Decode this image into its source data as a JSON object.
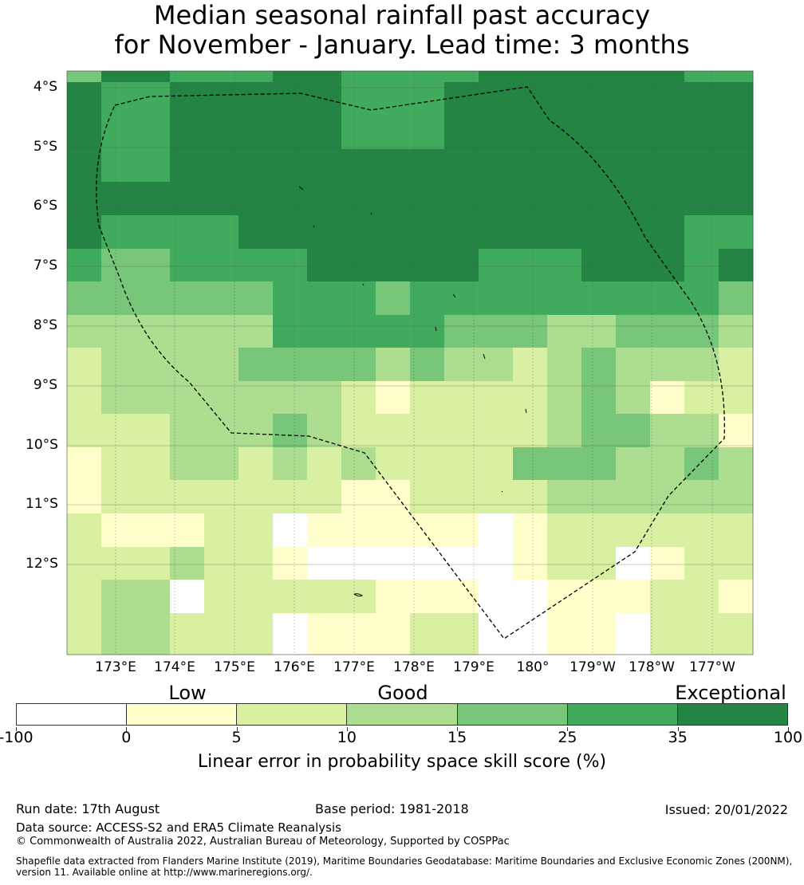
{
  "title": {
    "line1": "Median seasonal rainfall past accuracy",
    "line2": "for November - January. Lead time: 3 months"
  },
  "map": {
    "lat_labels": [
      "4°S",
      "5°S",
      "6°S",
      "7°S",
      "8°S",
      "9°S",
      "10°S",
      "11°S",
      "12°S"
    ],
    "lon_labels": [
      "173°E",
      "174°E",
      "175°E",
      "176°E",
      "177°E",
      "178°E",
      "179°E",
      "180°",
      "179°W",
      "178°W",
      "177°W"
    ],
    "grid": [
      [
        4,
        6,
        6,
        5,
        5,
        5,
        6,
        6,
        5,
        5,
        5,
        5,
        6,
        6,
        6,
        6,
        6,
        6,
        5,
        5
      ],
      [
        6,
        5,
        5,
        6,
        6,
        6,
        6,
        6,
        5,
        5,
        5,
        6,
        6,
        6,
        6,
        6,
        6,
        6,
        6,
        6
      ],
      [
        6,
        5,
        5,
        6,
        6,
        6,
        6,
        6,
        5,
        5,
        5,
        6,
        6,
        6,
        6,
        6,
        6,
        6,
        6,
        6
      ],
      [
        6,
        5,
        5,
        6,
        6,
        6,
        6,
        6,
        6,
        6,
        6,
        6,
        6,
        6,
        6,
        6,
        6,
        6,
        6,
        6
      ],
      [
        6,
        6,
        6,
        6,
        6,
        6,
        6,
        6,
        6,
        6,
        6,
        6,
        6,
        6,
        6,
        6,
        6,
        6,
        6,
        6
      ],
      [
        6,
        5,
        5,
        5,
        5,
        6,
        6,
        6,
        6,
        6,
        6,
        6,
        6,
        6,
        6,
        6,
        6,
        6,
        5,
        5
      ],
      [
        5,
        4,
        4,
        5,
        5,
        5,
        5,
        6,
        6,
        6,
        6,
        6,
        5,
        5,
        5,
        6,
        6,
        6,
        5,
        6
      ],
      [
        4,
        4,
        4,
        4,
        4,
        4,
        5,
        5,
        5,
        4,
        5,
        5,
        5,
        5,
        5,
        5,
        5,
        5,
        5,
        4
      ],
      [
        3,
        3,
        3,
        3,
        3,
        3,
        5,
        5,
        5,
        5,
        5,
        4,
        4,
        4,
        3,
        3,
        4,
        4,
        4,
        3
      ],
      [
        2,
        3,
        3,
        3,
        3,
        4,
        4,
        4,
        4,
        3,
        4,
        3,
        3,
        2,
        3,
        4,
        3,
        3,
        3,
        2
      ],
      [
        2,
        3,
        3,
        3,
        3,
        3,
        3,
        3,
        2,
        1,
        2,
        2,
        2,
        2,
        3,
        4,
        3,
        1,
        2,
        2
      ],
      [
        2,
        2,
        2,
        3,
        3,
        3,
        4,
        3,
        2,
        2,
        2,
        2,
        2,
        2,
        3,
        4,
        4,
        3,
        3,
        1
      ],
      [
        1,
        2,
        2,
        3,
        3,
        2,
        3,
        2,
        3,
        2,
        2,
        2,
        2,
        4,
        4,
        4,
        3,
        3,
        4,
        3
      ],
      [
        1,
        2,
        2,
        2,
        2,
        2,
        2,
        2,
        1,
        1,
        2,
        2,
        2,
        2,
        3,
        3,
        3,
        3,
        3,
        3
      ],
      [
        2,
        1,
        1,
        1,
        2,
        2,
        0,
        1,
        1,
        1,
        1,
        1,
        0,
        1,
        2,
        2,
        2,
        2,
        2,
        2
      ],
      [
        2,
        2,
        2,
        3,
        2,
        2,
        1,
        0,
        0,
        0,
        0,
        0,
        0,
        1,
        2,
        2,
        0,
        1,
        2,
        2
      ],
      [
        2,
        3,
        3,
        0,
        2,
        2,
        2,
        2,
        2,
        1,
        1,
        1,
        0,
        0,
        1,
        1,
        1,
        2,
        2,
        1
      ],
      [
        2,
        3,
        3,
        2,
        2,
        2,
        0,
        1,
        1,
        1,
        2,
        2,
        0,
        0,
        1,
        1,
        0,
        2,
        2,
        2
      ],
      [
        2,
        3,
        3,
        2,
        2,
        2,
        0,
        1,
        1,
        1,
        2,
        2,
        0,
        0,
        1,
        1,
        0,
        2,
        2,
        2
      ]
    ]
  },
  "legend": {
    "tiers": {
      "low": "Low",
      "good": "Good",
      "exceptional": "Exceptional"
    },
    "ticks": [
      "-100",
      "0",
      "5",
      "10",
      "15",
      "25",
      "35",
      "100"
    ],
    "colors": [
      "#ffffff",
      "#ffffcc",
      "#d9f0a3",
      "#addd8e",
      "#78c679",
      "#41ab5d",
      "#238443"
    ],
    "title": "Linear error in probability space skill score (%)"
  },
  "footer": {
    "run_date": "Run date: 17th August",
    "base_period": "Base period: 1981-2018",
    "issued": "Issued: 20/01/2022",
    "data_source": "Data source: ACCESS-S2 and ERA5 Climate Reanalysis",
    "copyright": "© Commonwealth of Australia 2022, Australian Bureau of Meteorology, Supported by COSPPac",
    "shapefile": "Shapefile data extracted from Flanders Marine Institute (2019), Maritime Boundaries Geodatabase: Maritime Boundaries and Exclusive Economic Zones (200NM), version 11. Available online at http://www.marineregions.org/."
  }
}
